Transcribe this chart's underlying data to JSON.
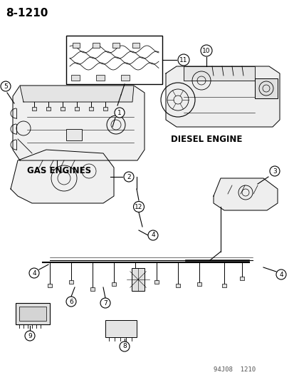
{
  "page_number": "8-1210",
  "background_color": "#ffffff",
  "line_color": "#000000",
  "label_gas_engines": "GAS ENGINES",
  "label_diesel_engine": "DIESEL ENGINE",
  "footer_text": "94J08  1210",
  "part_numbers": [
    "1",
    "2",
    "3",
    "4",
    "5",
    "6",
    "7",
    "8",
    "9",
    "10",
    "11",
    "12"
  ],
  "fig_width": 4.14,
  "fig_height": 5.33,
  "dpi": 100
}
